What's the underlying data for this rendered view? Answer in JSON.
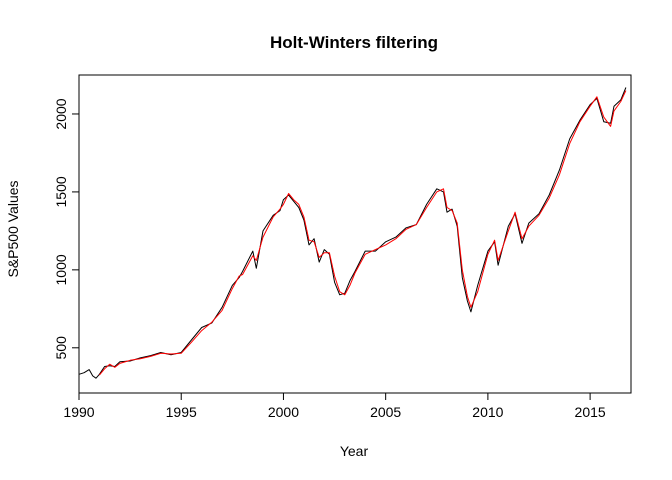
{
  "chart_data": {
    "type": "line",
    "title": "Holt-Winters filtering",
    "xlabel": "Year",
    "ylabel": "S&P500 Values",
    "xlim": [
      1990,
      2017
    ],
    "ylim": [
      210,
      2250
    ],
    "xticks": [
      1990,
      1995,
      2000,
      2005,
      2010,
      2015
    ],
    "xtick_labels": [
      "1990",
      "1995",
      "2000",
      "2005",
      "2010",
      "2015"
    ],
    "yticks": [
      500,
      1000,
      1500,
      2000
    ],
    "ytick_labels": [
      "500",
      "1000",
      "1500",
      "2000"
    ],
    "grid": false,
    "legend": "none",
    "colors": {
      "observed": "#000000",
      "fitted": "#ff0000"
    },
    "series": [
      {
        "key": "observed",
        "x": [
          1990.0,
          1990.25,
          1990.5,
          1990.67,
          1990.83,
          1991.0,
          1991.25,
          1991.5,
          1991.75,
          1992.0,
          1992.5,
          1993.0,
          1993.5,
          1994.0,
          1994.5,
          1995.0,
          1995.5,
          1996.0,
          1996.5,
          1997.0,
          1997.5,
          1997.83,
          1998.0,
          1998.5,
          1998.67,
          1999.0,
          1999.5,
          1999.83,
          2000.0,
          2000.25,
          2000.5,
          2000.75,
          2001.0,
          2001.25,
          2001.5,
          2001.75,
          2002.0,
          2002.25,
          2002.5,
          2002.75,
          2003.0,
          2003.25,
          2003.5,
          2004.0,
          2004.5,
          2005.0,
          2005.5,
          2006.0,
          2006.5,
          2007.0,
          2007.5,
          2007.83,
          2008.0,
          2008.25,
          2008.5,
          2008.75,
          2009.0,
          2009.17,
          2009.5,
          2010.0,
          2010.33,
          2010.5,
          2011.0,
          2011.33,
          2011.67,
          2012.0,
          2012.5,
          2013.0,
          2013.5,
          2014.0,
          2014.5,
          2015.0,
          2015.33,
          2015.67,
          2016.0,
          2016.17,
          2016.5,
          2016.75
        ],
        "y": [
          330,
          340,
          360,
          320,
          305,
          330,
          380,
          385,
          380,
          410,
          415,
          435,
          450,
          470,
          455,
          470,
          550,
          630,
          660,
          760,
          900,
          950,
          990,
          1120,
          1010,
          1250,
          1350,
          1380,
          1450,
          1480,
          1440,
          1400,
          1320,
          1160,
          1200,
          1050,
          1130,
          1100,
          920,
          840,
          850,
          930,
          990,
          1120,
          1120,
          1180,
          1210,
          1270,
          1290,
          1420,
          1520,
          1500,
          1370,
          1390,
          1280,
          950,
          800,
          730,
          900,
          1120,
          1180,
          1030,
          1280,
          1360,
          1170,
          1300,
          1360,
          1480,
          1640,
          1840,
          1960,
          2060,
          2100,
          1950,
          1940,
          2050,
          2090,
          2170
        ]
      },
      {
        "key": "fitted",
        "x": [
          1991.0,
          1991.25,
          1991.5,
          1991.75,
          1992.0,
          1992.5,
          1993.0,
          1993.5,
          1994.0,
          1994.5,
          1995.0,
          1995.5,
          1996.0,
          1996.5,
          1997.0,
          1997.5,
          1997.83,
          1998.0,
          1998.5,
          1998.67,
          1999.0,
          1999.5,
          1999.83,
          2000.0,
          2000.25,
          2000.5,
          2000.75,
          2001.0,
          2001.25,
          2001.5,
          2001.75,
          2002.0,
          2002.25,
          2002.5,
          2002.75,
          2003.0,
          2003.25,
          2003.5,
          2004.0,
          2004.5,
          2005.0,
          2005.5,
          2006.0,
          2006.5,
          2007.0,
          2007.5,
          2007.83,
          2008.0,
          2008.25,
          2008.5,
          2008.75,
          2009.0,
          2009.17,
          2009.5,
          2010.0,
          2010.33,
          2010.5,
          2011.0,
          2011.33,
          2011.67,
          2012.0,
          2012.5,
          2013.0,
          2013.5,
          2014.0,
          2014.5,
          2015.0,
          2015.33,
          2015.67,
          2016.0,
          2016.17,
          2016.5,
          2016.75
        ],
        "y": [
          325,
          365,
          395,
          375,
          400,
          420,
          430,
          445,
          465,
          460,
          465,
          535,
          610,
          665,
          740,
          880,
          960,
          970,
          1090,
          1060,
          1210,
          1340,
          1390,
          1420,
          1490,
          1450,
          1420,
          1340,
          1190,
          1180,
          1080,
          1110,
          1110,
          960,
          860,
          840,
          900,
          980,
          1100,
          1130,
          1160,
          1200,
          1260,
          1290,
          1400,
          1500,
          1520,
          1400,
          1380,
          1300,
          1000,
          830,
          760,
          860,
          1100,
          1190,
          1060,
          1250,
          1370,
          1200,
          1280,
          1350,
          1460,
          1610,
          1810,
          1950,
          2050,
          2110,
          1980,
          1920,
          2020,
          2080,
          2150
        ]
      }
    ]
  }
}
